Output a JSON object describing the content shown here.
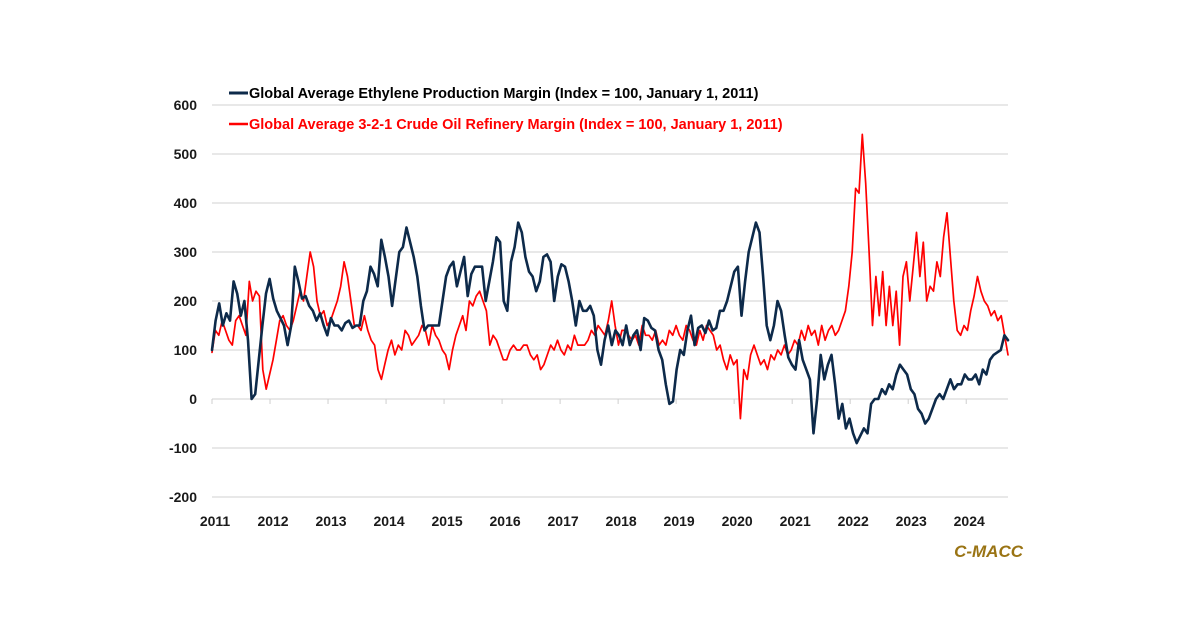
{
  "chart_data": {
    "type": "line",
    "title": "",
    "xlabel": "",
    "ylabel": "",
    "ylim": [
      -200,
      600
    ],
    "yticks": [
      "600",
      "500",
      "400",
      "300",
      "200",
      "100",
      "0",
      "-100",
      "-200"
    ],
    "ytick_values": [
      600,
      500,
      400,
      300,
      200,
      100,
      0,
      -100,
      -200
    ],
    "xlim": [
      2011.0,
      2024.72
    ],
    "xticks": [
      "2011",
      "2012",
      "2013",
      "2014",
      "2015",
      "2016",
      "2017",
      "2018",
      "2019",
      "2020",
      "2021",
      "2022",
      "2023",
      "2024"
    ],
    "xtick_values": [
      2011,
      2012,
      2013,
      2014,
      2015,
      2016,
      2017,
      2018,
      2019,
      2020,
      2021,
      2022,
      2023,
      2024
    ],
    "grid": true,
    "legend_position": "top-left",
    "x_start": 2011.0,
    "x_step_years": 0.08333,
    "series": [
      {
        "name": "Global Average Ethylene Production Margin (Index = 100, January 1, 2011)",
        "color": "#0d2a4a",
        "values": [
          100,
          160,
          195,
          150,
          175,
          160,
          240,
          215,
          170,
          200,
          120,
          0,
          10,
          80,
          150,
          215,
          245,
          205,
          180,
          165,
          150,
          110,
          150,
          270,
          240,
          205,
          210,
          190,
          180,
          160,
          175,
          150,
          130,
          165,
          150,
          150,
          140,
          155,
          160,
          145,
          150,
          150,
          200,
          220,
          270,
          255,
          230,
          325,
          290,
          250,
          190,
          245,
          300,
          310,
          350,
          320,
          290,
          250,
          190,
          140,
          150,
          150,
          150,
          150,
          200,
          250,
          270,
          280,
          230,
          260,
          290,
          210,
          255,
          270,
          270,
          270,
          200,
          240,
          280,
          330,
          320,
          200,
          180,
          280,
          310,
          360,
          340,
          290,
          260,
          250,
          220,
          240,
          290,
          295,
          280,
          200,
          250,
          275,
          270,
          240,
          200,
          150,
          200,
          180,
          180,
          190,
          170,
          100,
          70,
          120,
          150,
          110,
          140,
          130,
          110,
          150,
          110,
          130,
          140,
          100,
          165,
          160,
          145,
          140,
          100,
          80,
          30,
          -10,
          -5,
          60,
          100,
          90,
          140,
          170,
          110,
          145,
          150,
          135,
          160,
          140,
          145,
          180,
          180,
          200,
          230,
          260,
          270,
          170,
          240,
          300,
          330,
          360,
          340,
          250,
          150,
          120
        ],
        "values_tail": [
          150,
          200,
          180,
          130,
          85,
          70,
          60,
          120,
          80,
          60,
          40,
          -70,
          0,
          90,
          40,
          70,
          90,
          30,
          -40,
          -10,
          -60,
          -40,
          -70,
          -90,
          -75,
          -60,
          -70,
          -10,
          0,
          0,
          20,
          10,
          30,
          20,
          50,
          70,
          60,
          50,
          20,
          10,
          -20,
          -30,
          -50,
          -40,
          -20,
          0,
          10,
          0,
          20,
          40,
          20,
          30,
          30,
          50,
          40,
          40,
          50,
          30,
          60,
          50,
          80,
          90,
          95,
          100,
          130,
          120
        ]
      },
      {
        "name": "Global Average 3-2-1 Crude Oil Refinery Margin (Index = 100, January 1, 2011)",
        "color": "#ff0000",
        "values": [
          95,
          140,
          130,
          160,
          140,
          120,
          110,
          160,
          170,
          150,
          130,
          240,
          200,
          220,
          210,
          60,
          20,
          50,
          80,
          120,
          160,
          170,
          150,
          140,
          160,
          190,
          220,
          200,
          250,
          300,
          270,
          200,
          170,
          180,
          150,
          160,
          180,
          200,
          230,
          280,
          250,
          200,
          150,
          150,
          140,
          170,
          140,
          120,
          110,
          60,
          40,
          70,
          100,
          120,
          90,
          110,
          100,
          140,
          130,
          110,
          120,
          130,
          150,
          140,
          110,
          150,
          130,
          120,
          100,
          90,
          60,
          100,
          130,
          150,
          170,
          140,
          200,
          190,
          210,
          220,
          200,
          180,
          110,
          130,
          120,
          100,
          80,
          80,
          100,
          110,
          100,
          100,
          110,
          110,
          90,
          80,
          90,
          60,
          70,
          90,
          110,
          100,
          120,
          100,
          90,
          110,
          100,
          130,
          110,
          110,
          110,
          120,
          140,
          130,
          150,
          140,
          130,
          160,
          200,
          150,
          110,
          140,
          140,
          130,
          120,
          130,
          110,
          150,
          130,
          130,
          120,
          140,
          110,
          120,
          110,
          140,
          130,
          150,
          130,
          120,
          150,
          140,
          120,
          110,
          140,
          120,
          150,
          140,
          130,
          100,
          110,
          80,
          60,
          90,
          70,
          80
        ],
        "values_tail": [
          -40,
          60,
          40,
          90,
          110,
          90,
          70,
          80,
          60,
          90,
          80,
          100,
          90,
          110,
          90,
          100,
          120,
          110,
          140,
          120,
          150,
          130,
          140,
          110,
          150,
          120,
          140,
          150,
          130,
          140,
          160,
          180,
          230,
          300,
          430,
          420,
          540,
          440,
          300,
          150,
          250,
          170,
          260,
          150,
          230,
          150,
          220,
          110,
          250,
          280,
          200,
          270,
          340,
          250,
          320,
          200,
          230,
          220,
          280,
          250,
          330,
          380,
          290,
          200,
          140,
          130,
          150,
          140,
          180,
          210,
          250,
          220,
          200,
          190,
          170,
          180,
          160,
          170,
          130,
          90
        ]
      }
    ]
  },
  "legend": {
    "items": [
      {
        "label": "Global Average Ethylene Production Margin (Index = 100, January 1, 2011)",
        "color": "#0d2a4a",
        "text_color": "#000000"
      },
      {
        "label": "Global Average 3-2-1 Crude Oil Refinery Margin (Index = 100, January 1, 2011)",
        "color": "#ff0000",
        "text_color": "#ff0000"
      }
    ]
  },
  "source_label": "C-MACC",
  "source_color": "#9a7414"
}
